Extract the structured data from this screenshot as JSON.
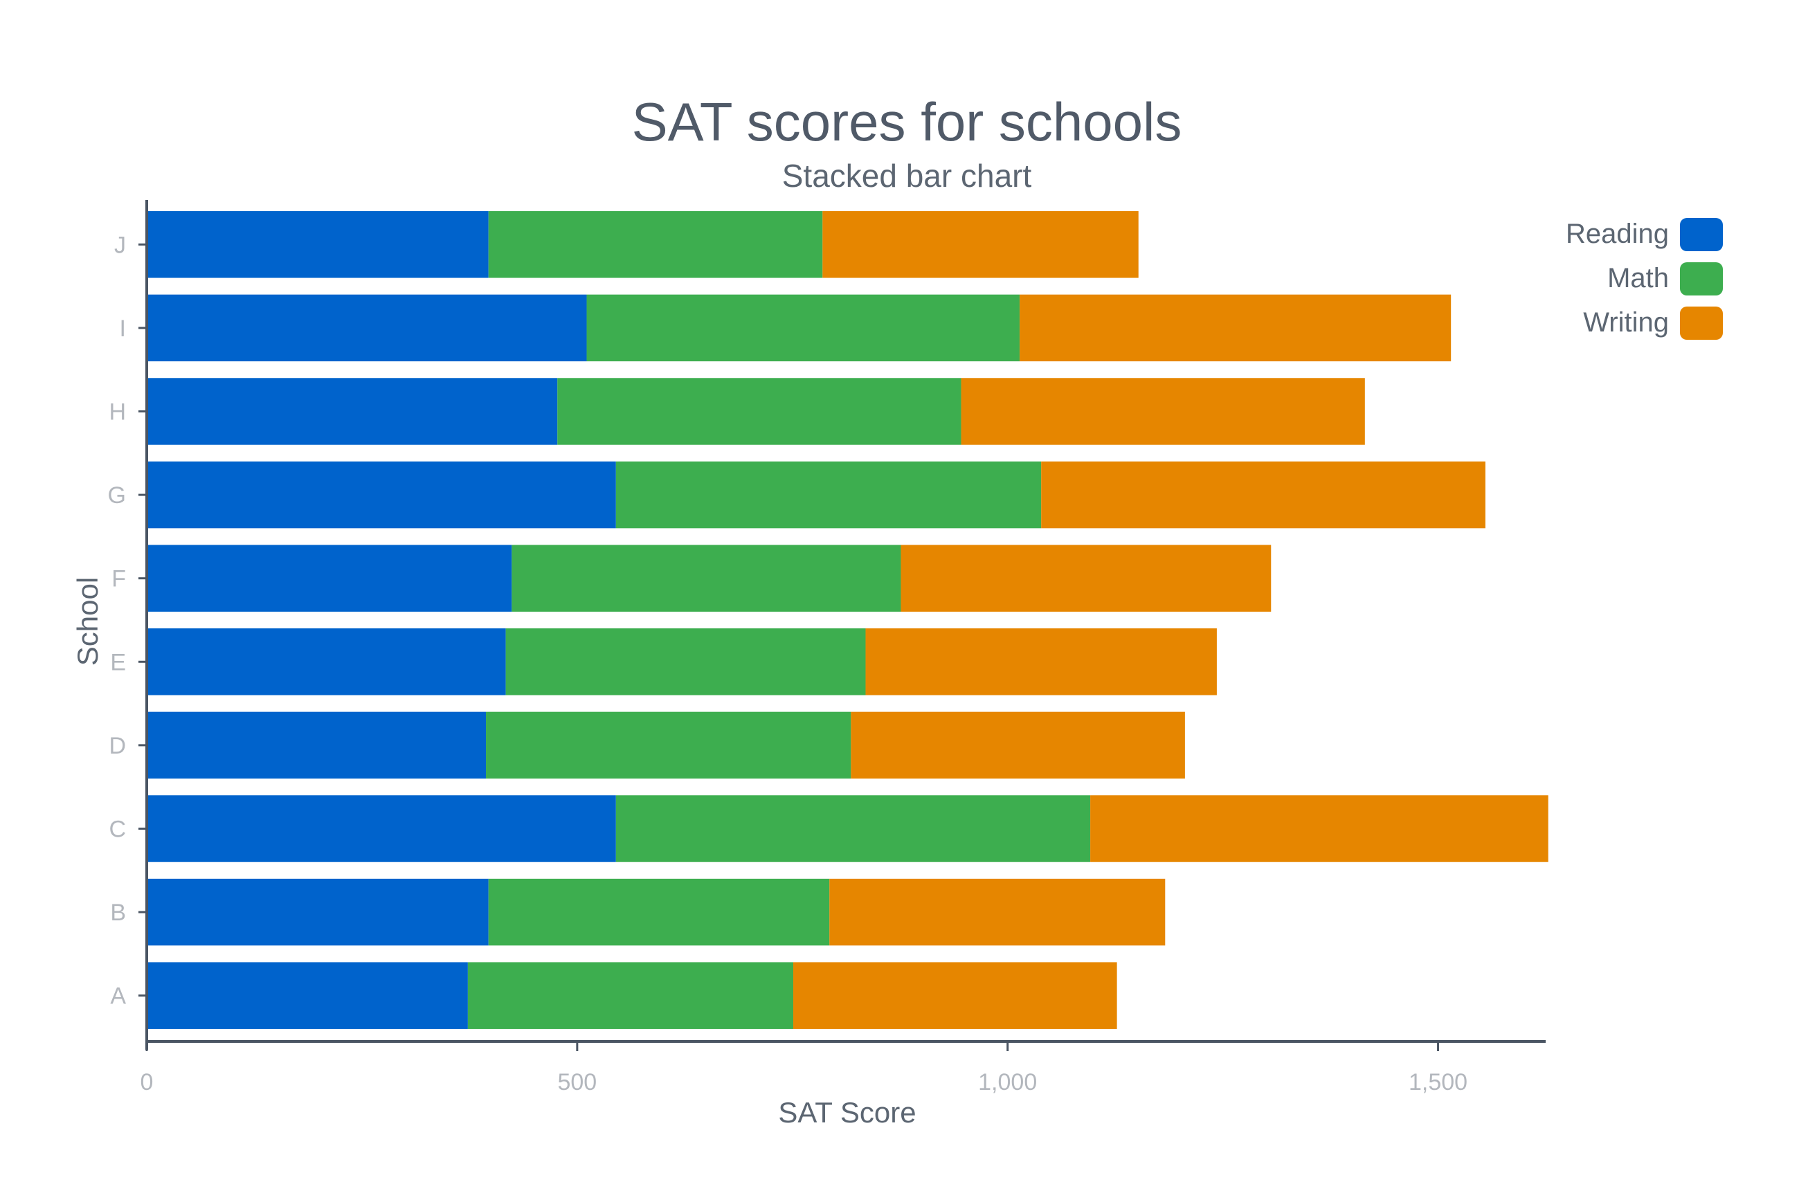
{
  "chart_data": {
    "type": "bar",
    "orientation": "horizontal",
    "stacked": true,
    "title": "SAT scores for schools",
    "subtitle": "Stacked bar chart",
    "xlabel": "SAT Score",
    "ylabel": "School",
    "xlim": [
      0,
      1625
    ],
    "x_ticks": [
      0,
      500,
      1000,
      1500
    ],
    "x_tick_labels": [
      "0",
      "500",
      "1,000",
      "1,500"
    ],
    "grid": false,
    "legend_position": "top-right",
    "categories": [
      "A",
      "B",
      "C",
      "D",
      "E",
      "F",
      "G",
      "H",
      "I",
      "J"
    ],
    "series": [
      {
        "name": "Reading",
        "color": "#0063cc",
        "values": [
          373,
          397,
          545,
          394,
          417,
          424,
          545,
          477,
          511,
          397
        ]
      },
      {
        "name": "Math",
        "color": "#3dae4f",
        "values": [
          378,
          396,
          551,
          424,
          418,
          452,
          494,
          469,
          503,
          388
        ]
      },
      {
        "name": "Writing",
        "color": "#e68600",
        "values": [
          376,
          390,
          532,
          388,
          408,
          430,
          516,
          469,
          501,
          367
        ]
      }
    ]
  }
}
